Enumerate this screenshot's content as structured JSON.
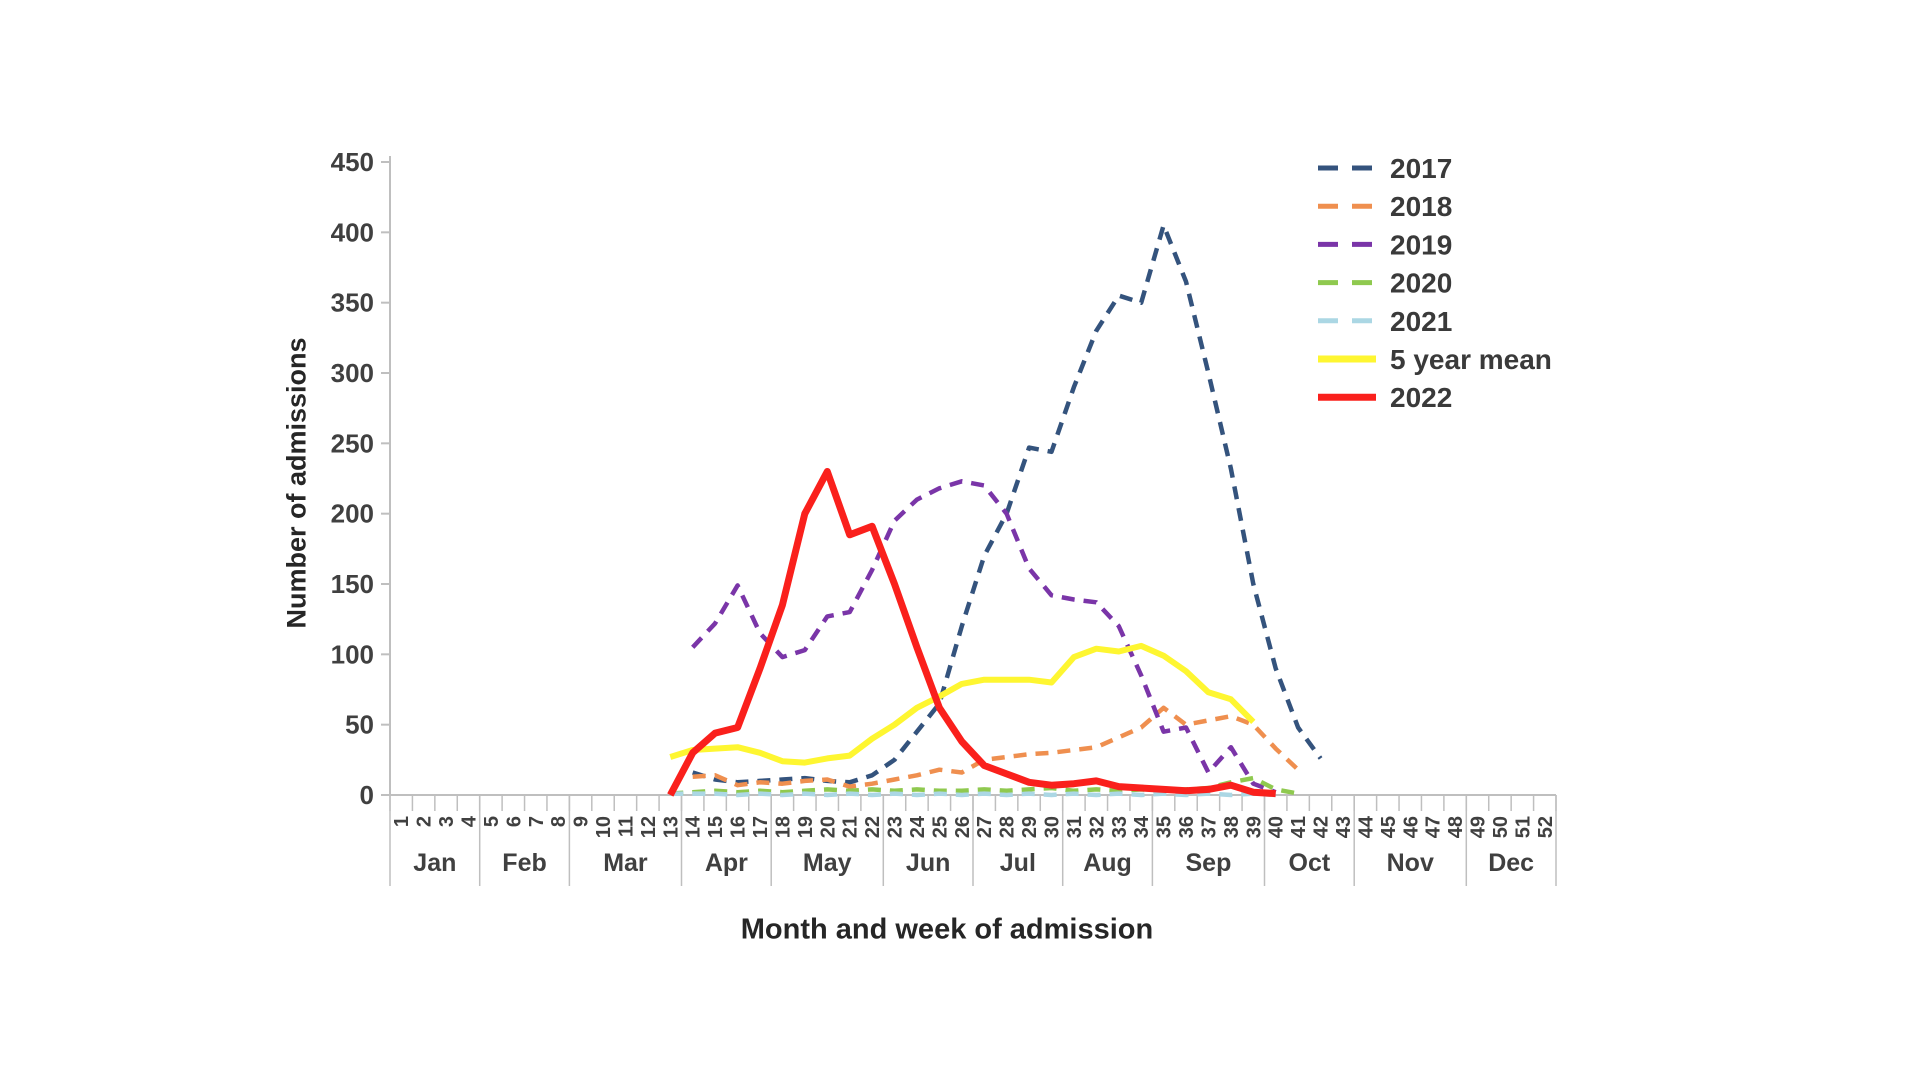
{
  "page": {
    "background": "#ffffff"
  },
  "chart_data": {
    "type": "line",
    "title": "",
    "xlabel": "Month and week of admission",
    "ylabel": "Number of admissions",
    "ylim": [
      0,
      450
    ],
    "yticks": [
      0,
      50,
      100,
      150,
      200,
      250,
      300,
      350,
      400,
      450
    ],
    "week_range": [
      1,
      52
    ],
    "grid": false,
    "legend_position": "upper-right",
    "axis_color": "#bfbfbf",
    "text_color": "#404040",
    "months": [
      {
        "label": "Jan",
        "start_week": 1,
        "end_week": 4
      },
      {
        "label": "Feb",
        "start_week": 5,
        "end_week": 8
      },
      {
        "label": "Mar",
        "start_week": 9,
        "end_week": 13
      },
      {
        "label": "Apr",
        "start_week": 14,
        "end_week": 17
      },
      {
        "label": "May",
        "start_week": 18,
        "end_week": 22
      },
      {
        "label": "Jun",
        "start_week": 23,
        "end_week": 26
      },
      {
        "label": "Jul",
        "start_week": 27,
        "end_week": 30
      },
      {
        "label": "Aug",
        "start_week": 31,
        "end_week": 34
      },
      {
        "label": "Sep",
        "start_week": 35,
        "end_week": 39
      },
      {
        "label": "Oct",
        "start_week": 40,
        "end_week": 43
      },
      {
        "label": "Nov",
        "start_week": 44,
        "end_week": 48
      },
      {
        "label": "Dec",
        "start_week": 49,
        "end_week": 52
      }
    ],
    "series": [
      {
        "name": "2017",
        "color": "#34537d",
        "dashed": true,
        "width": 4.5,
        "data": [
          [
            14,
            16
          ],
          [
            15,
            11
          ],
          [
            16,
            9
          ],
          [
            17,
            10
          ],
          [
            18,
            11
          ],
          [
            19,
            12
          ],
          [
            20,
            10
          ],
          [
            21,
            9
          ],
          [
            22,
            14
          ],
          [
            23,
            25
          ],
          [
            24,
            45
          ],
          [
            25,
            65
          ],
          [
            26,
            120
          ],
          [
            27,
            170
          ],
          [
            28,
            200
          ],
          [
            29,
            247
          ],
          [
            30,
            244
          ],
          [
            31,
            290
          ],
          [
            32,
            330
          ],
          [
            33,
            355
          ],
          [
            34,
            350
          ],
          [
            35,
            405
          ],
          [
            36,
            365
          ],
          [
            37,
            300
          ],
          [
            38,
            232
          ],
          [
            39,
            150
          ],
          [
            40,
            90
          ],
          [
            41,
            48
          ],
          [
            42,
            26
          ]
        ]
      },
      {
        "name": "2018",
        "color": "#ef8f4f",
        "dashed": true,
        "width": 4.5,
        "data": [
          [
            14,
            13
          ],
          [
            15,
            14
          ],
          [
            16,
            7
          ],
          [
            17,
            9
          ],
          [
            18,
            8
          ],
          [
            19,
            10
          ],
          [
            20,
            11
          ],
          [
            21,
            6
          ],
          [
            22,
            8
          ],
          [
            23,
            11
          ],
          [
            24,
            14
          ],
          [
            25,
            18
          ],
          [
            26,
            16
          ],
          [
            27,
            25
          ],
          [
            28,
            27
          ],
          [
            29,
            29
          ],
          [
            30,
            30
          ],
          [
            31,
            32
          ],
          [
            32,
            34
          ],
          [
            33,
            41
          ],
          [
            34,
            48
          ],
          [
            35,
            62
          ],
          [
            36,
            50
          ],
          [
            37,
            53
          ],
          [
            38,
            56
          ],
          [
            39,
            50
          ],
          [
            40,
            33
          ],
          [
            41,
            18
          ]
        ]
      },
      {
        "name": "2019",
        "color": "#7a35a8",
        "dashed": true,
        "width": 4.5,
        "data": [
          [
            14,
            105
          ],
          [
            15,
            122
          ],
          [
            16,
            149
          ],
          [
            17,
            115
          ],
          [
            18,
            98
          ],
          [
            19,
            103
          ],
          [
            20,
            127
          ],
          [
            21,
            130
          ],
          [
            22,
            160
          ],
          [
            23,
            195
          ],
          [
            24,
            210
          ],
          [
            25,
            218
          ],
          [
            26,
            223
          ],
          [
            27,
            220
          ],
          [
            28,
            200
          ],
          [
            29,
            161
          ],
          [
            30,
            142
          ],
          [
            31,
            139
          ],
          [
            32,
            137
          ],
          [
            33,
            120
          ],
          [
            34,
            85
          ],
          [
            35,
            45
          ],
          [
            36,
            48
          ],
          [
            37,
            16
          ],
          [
            38,
            34
          ],
          [
            39,
            8
          ],
          [
            40,
            2
          ]
        ]
      },
      {
        "name": "2020",
        "color": "#8fc94f",
        "dashed": true,
        "width": 4.5,
        "data": [
          [
            13,
            1
          ],
          [
            14,
            2
          ],
          [
            15,
            3
          ],
          [
            16,
            2
          ],
          [
            17,
            3
          ],
          [
            18,
            2
          ],
          [
            19,
            3
          ],
          [
            20,
            4
          ],
          [
            21,
            3
          ],
          [
            22,
            4
          ],
          [
            23,
            3
          ],
          [
            24,
            4
          ],
          [
            25,
            3
          ],
          [
            26,
            3
          ],
          [
            27,
            4
          ],
          [
            28,
            3
          ],
          [
            29,
            4
          ],
          [
            30,
            5
          ],
          [
            31,
            3
          ],
          [
            32,
            4
          ],
          [
            33,
            3
          ],
          [
            34,
            4
          ],
          [
            35,
            3
          ],
          [
            36,
            4
          ],
          [
            37,
            5
          ],
          [
            38,
            9
          ],
          [
            39,
            12
          ],
          [
            40,
            4
          ],
          [
            41,
            1
          ]
        ]
      },
      {
        "name": "2021",
        "color": "#abd7e4",
        "dashed": true,
        "width": 4.5,
        "data": [
          [
            13,
            1
          ],
          [
            14,
            1
          ],
          [
            15,
            1
          ],
          [
            16,
            0
          ],
          [
            17,
            1
          ],
          [
            18,
            0
          ],
          [
            19,
            1
          ],
          [
            20,
            0
          ],
          [
            21,
            1
          ],
          [
            22,
            0
          ],
          [
            23,
            1
          ],
          [
            24,
            0
          ],
          [
            25,
            1
          ],
          [
            26,
            0
          ],
          [
            27,
            1
          ],
          [
            28,
            0
          ],
          [
            29,
            1
          ],
          [
            30,
            0
          ],
          [
            31,
            1
          ],
          [
            32,
            0
          ],
          [
            33,
            1
          ],
          [
            34,
            0
          ],
          [
            35,
            1
          ],
          [
            36,
            0
          ],
          [
            37,
            1
          ],
          [
            38,
            0
          ],
          [
            39,
            1
          ],
          [
            40,
            0
          ]
        ]
      },
      {
        "name": "5 year mean",
        "color": "#fef631",
        "dashed": false,
        "width": 6,
        "data": [
          [
            13,
            27
          ],
          [
            14,
            32
          ],
          [
            15,
            33
          ],
          [
            16,
            34
          ],
          [
            17,
            30
          ],
          [
            18,
            24
          ],
          [
            19,
            23
          ],
          [
            20,
            26
          ],
          [
            21,
            28
          ],
          [
            22,
            40
          ],
          [
            23,
            50
          ],
          [
            24,
            62
          ],
          [
            25,
            70
          ],
          [
            26,
            79
          ],
          [
            27,
            82
          ],
          [
            28,
            82
          ],
          [
            29,
            82
          ],
          [
            30,
            80
          ],
          [
            31,
            98
          ],
          [
            32,
            104
          ],
          [
            33,
            102
          ],
          [
            34,
            106
          ],
          [
            35,
            99
          ],
          [
            36,
            88
          ],
          [
            37,
            73
          ],
          [
            38,
            68
          ],
          [
            39,
            52
          ]
        ]
      },
      {
        "name": "2022",
        "color": "#fa201c",
        "dashed": false,
        "width": 7,
        "data": [
          [
            13,
            0
          ],
          [
            14,
            30
          ],
          [
            15,
            44
          ],
          [
            16,
            48
          ],
          [
            17,
            90
          ],
          [
            18,
            135
          ],
          [
            19,
            200
          ],
          [
            20,
            230
          ],
          [
            21,
            185
          ],
          [
            22,
            191
          ],
          [
            23,
            150
          ],
          [
            24,
            105
          ],
          [
            25,
            62
          ],
          [
            26,
            38
          ],
          [
            27,
            21
          ],
          [
            28,
            15
          ],
          [
            29,
            9
          ],
          [
            30,
            7
          ],
          [
            31,
            8
          ],
          [
            32,
            10
          ],
          [
            33,
            6
          ],
          [
            34,
            5
          ],
          [
            35,
            4
          ],
          [
            36,
            3
          ],
          [
            37,
            4
          ],
          [
            38,
            7
          ],
          [
            39,
            2
          ],
          [
            40,
            1
          ]
        ]
      }
    ]
  }
}
